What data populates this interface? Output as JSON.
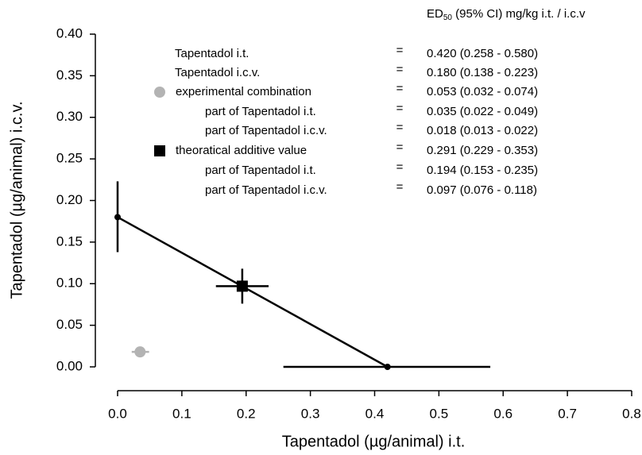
{
  "chart_data": {
    "type": "isobologram",
    "xlabel": "Tapentadol (µg/animal) i.t.",
    "ylabel": "Tapentadol (µg/animal) i.c.v.",
    "xlim": [
      0,
      0.8
    ],
    "ylim": [
      0,
      0.4
    ],
    "xticks": [
      {
        "value": 0,
        "label": "0.0"
      },
      {
        "value": 0.1,
        "label": "0.1"
      },
      {
        "value": 0.2,
        "label": "0.2"
      },
      {
        "value": 0.3,
        "label": "0.3"
      },
      {
        "value": 0.4,
        "label": "0.4"
      },
      {
        "value": 0.5,
        "label": "0.5"
      },
      {
        "value": 0.6,
        "label": "0.6"
      },
      {
        "value": 0.7,
        "label": "0.7"
      },
      {
        "value": 0.8,
        "label": "0.8"
      }
    ],
    "yticks": [
      {
        "value": 0,
        "label": "0.00"
      },
      {
        "value": 0.05,
        "label": "0.05"
      },
      {
        "value": 0.1,
        "label": "0.10"
      },
      {
        "value": 0.15,
        "label": "0.15"
      },
      {
        "value": 0.2,
        "label": "0.20"
      },
      {
        "value": 0.25,
        "label": "0.25"
      },
      {
        "value": 0.3,
        "label": "0.30"
      },
      {
        "value": 0.35,
        "label": "0.35"
      },
      {
        "value": 0.4,
        "label": "0.40"
      }
    ],
    "additive_line": {
      "x": [
        0,
        0.42
      ],
      "y": [
        0.18,
        0
      ]
    },
    "points": [
      {
        "name": "Tapentadol i.t.",
        "marker": "dot",
        "color": "#000000",
        "x": 0.42,
        "y": 0,
        "xci": [
          0.258,
          0.58
        ]
      },
      {
        "name": "Tapentadol i.c.v.",
        "marker": "dot",
        "color": "#000000",
        "x": 0,
        "y": 0.18,
        "yci": [
          0.138,
          0.223
        ]
      },
      {
        "name": "theoratical additive value",
        "marker": "square",
        "color": "#000000",
        "x": 0.194,
        "y": 0.097,
        "xci": [
          0.153,
          0.235
        ],
        "yci": [
          0.076,
          0.118
        ]
      },
      {
        "name": "experimental combination",
        "marker": "circle",
        "color": "#b3b3b3",
        "x": 0.035,
        "y": 0.018,
        "xci": [
          0.022,
          0.049
        ],
        "yci": [
          0.013,
          0.022
        ]
      }
    ],
    "legend_table": {
      "header": {
        "main": "ED",
        "sub": "50",
        "rest": " (95% CI) mg/kg i.t. / i.c.v"
      },
      "rows": [
        {
          "label": "Tapentadol i.t.",
          "eq": "=",
          "value": "0.420 (0.258 - 0.580)"
        },
        {
          "label": "Tapentadol i.c.v.",
          "eq": "=",
          "value": "0.180 (0.138 - 0.223)"
        },
        {
          "label": "experimental combination",
          "eq": "=",
          "value": "0.053 (0.032 - 0.074)"
        },
        {
          "label": "part of Tapentadol i.t.",
          "eq": "=",
          "value": "0.035 (0.022 - 0.049)"
        },
        {
          "label": "part of Tapentadol i.c.v.",
          "eq": "=",
          "value": "0.018 (0.013 - 0.022)"
        },
        {
          "label": "theoratical additive value",
          "eq": "=",
          "value": "0.291 (0.229 - 0.353)"
        },
        {
          "label": "part of Tapentadol i.t.",
          "eq": "=",
          "value": "0.194 (0.153 - 0.235)"
        },
        {
          "label": "part of Tapentadol i.c.v.",
          "eq": "=",
          "value": "0.097 (0.076 - 0.118)"
        }
      ]
    }
  }
}
